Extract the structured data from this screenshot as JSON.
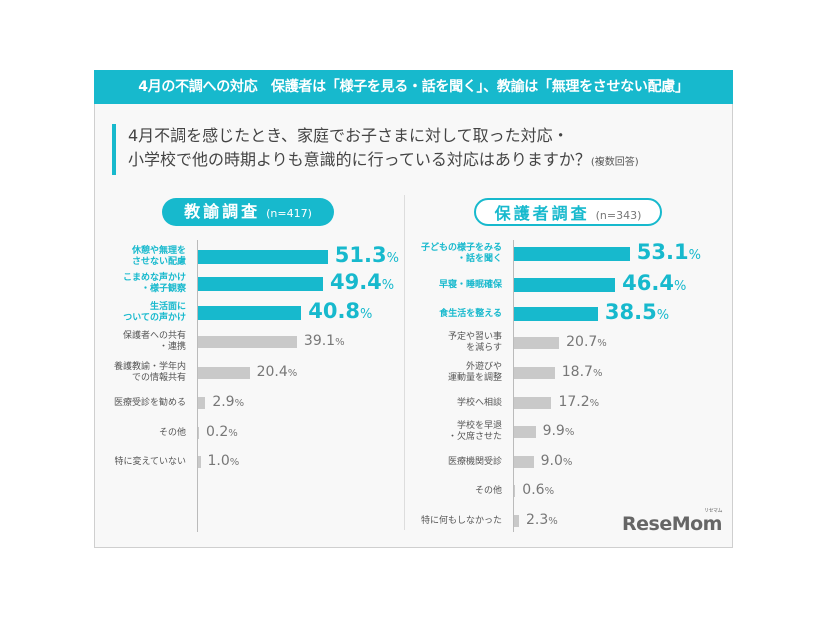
{
  "header": {
    "title": "4月の不調への対応　保護者は「様子を見る・話を聞く」、教諭は「無理をさせない配慮」"
  },
  "question": {
    "line1": "4月不調を感じたとき、家庭でお子さまに対して取った対応・",
    "line2": "小学校で他の時期よりも意識的に行っている対応はありますか？",
    "note": "(複数回答)"
  },
  "colors": {
    "accent": "#17b9cd",
    "other": "#c9c9c9"
  },
  "logo": {
    "text": "ReseMom",
    "kana": "リセマム"
  },
  "chart_data": [
    {
      "type": "bar",
      "orientation": "horizontal",
      "title": "教諭調査",
      "n": "(n=417)",
      "unit": "%",
      "categories": [
        "休憩や無理を\nさせない配慮",
        "こまめな声かけ\n・様子観察",
        "生活面に\nついての声かけ",
        "保護者への共有\n・連携",
        "養護教諭・学年内\nでの情報共有",
        "医療受診を勧める",
        "その他",
        "特に変えていない"
      ],
      "values": [
        51.3,
        49.4,
        40.8,
        39.1,
        20.4,
        2.9,
        0.2,
        1.0
      ],
      "highlighted": [
        true,
        true,
        true,
        false,
        false,
        false,
        false,
        false
      ]
    },
    {
      "type": "bar",
      "orientation": "horizontal",
      "title": "保護者調査",
      "n": "(n=343)",
      "unit": "%",
      "categories": [
        "子どもの様子をみる\n・話を聞く",
        "早寝・睡眠確保",
        "食生活を整える",
        "予定や習い事\nを減らす",
        "外遊びや\n運動量を調整",
        "学校へ相談",
        "学校を早退\n・欠席させた",
        "医療機関受診",
        "その他",
        "特に何もしなかった"
      ],
      "values": [
        53.1,
        46.4,
        38.5,
        20.7,
        18.7,
        17.2,
        9.9,
        9.0,
        0.6,
        2.3
      ],
      "highlighted": [
        true,
        true,
        true,
        false,
        false,
        false,
        false,
        false,
        false,
        false
      ]
    }
  ]
}
